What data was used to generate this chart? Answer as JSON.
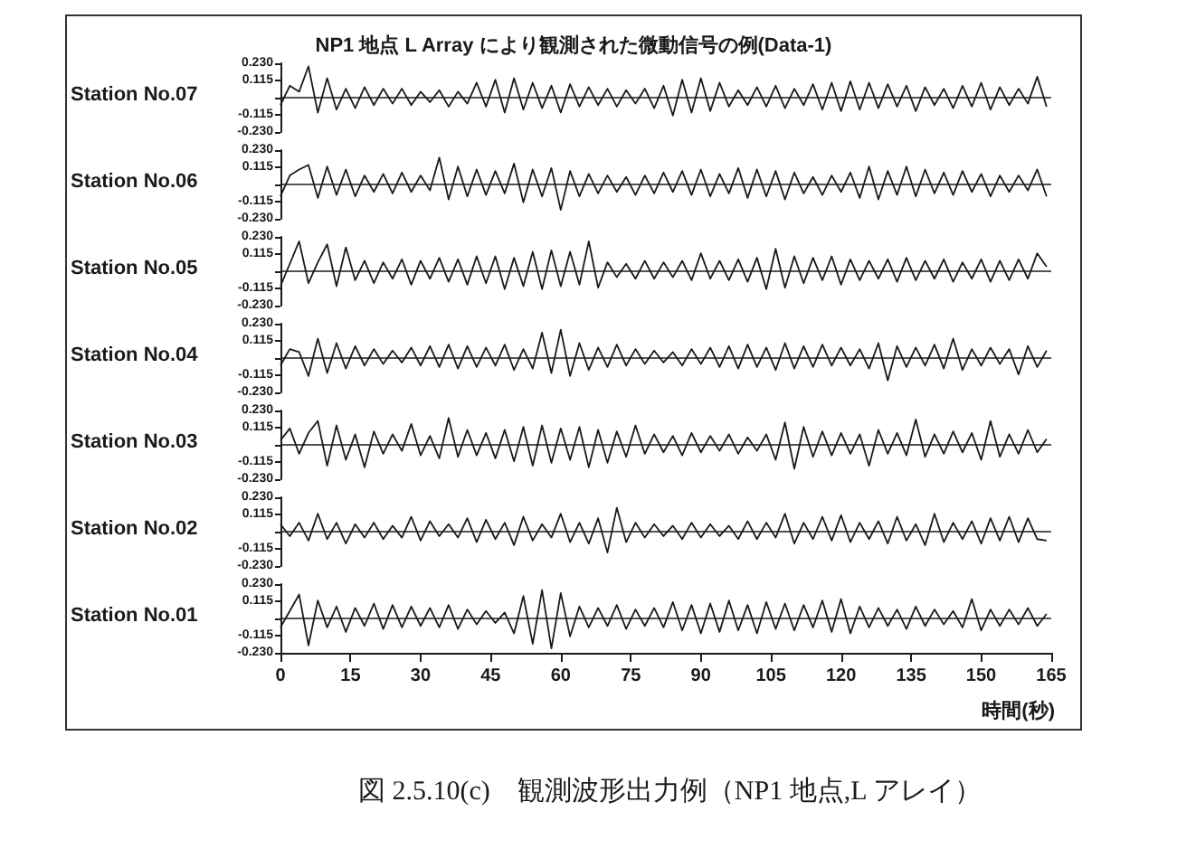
{
  "chart_data": [
    {
      "type": "line",
      "title": "NP1 地点 L Array により観測された微動信号の例(Data-1)",
      "ylabel": "Station No.07",
      "color": "#1a1a1a",
      "tick_labels": "y",
      "marker": "none",
      "grid": false,
      "xlim": [
        0,
        165
      ],
      "xticks": [
        0,
        15,
        30,
        45,
        60,
        75,
        90,
        105,
        120,
        135,
        150,
        165
      ],
      "ylim": [
        -0.23,
        0.23
      ],
      "yticks": [
        {
          "value": 0.23,
          "label": "0.230"
        },
        {
          "value": 0.115,
          "label": "0.115"
        },
        {
          "value": 0,
          "label": null
        },
        {
          "value": -0.115,
          "label": "-0.115"
        },
        {
          "value": -0.23,
          "label": "-0.230"
        }
      ],
      "ref_lines": [
        {
          "axis": "y",
          "value": 0
        }
      ],
      "x": [
        0,
        2,
        4,
        6,
        8,
        10,
        12,
        14,
        16,
        18,
        20,
        22,
        24,
        26,
        28,
        30,
        32,
        34,
        36,
        38,
        40,
        42,
        44,
        46,
        48,
        50,
        52,
        54,
        56,
        58,
        60,
        62,
        64,
        66,
        68,
        70,
        72,
        74,
        76,
        78,
        80,
        82,
        84,
        86,
        88,
        90,
        92,
        94,
        96,
        98,
        100,
        102,
        104,
        106,
        108,
        110,
        112,
        114,
        116,
        118,
        120,
        122,
        124,
        126,
        128,
        130,
        132,
        134,
        136,
        138,
        140,
        142,
        144,
        146,
        148,
        150,
        152,
        154,
        156,
        158,
        160,
        162,
        164
      ],
      "values": [
        -0.05,
        0.08,
        0.04,
        0.21,
        -0.1,
        0.13,
        -0.08,
        0.06,
        -0.07,
        0.07,
        -0.05,
        0.06,
        -0.04,
        0.06,
        -0.05,
        0.04,
        -0.03,
        0.05,
        -0.06,
        0.04,
        -0.04,
        0.1,
        -0.06,
        0.12,
        -0.1,
        0.13,
        -0.08,
        0.1,
        -0.07,
        0.08,
        -0.1,
        0.09,
        -0.06,
        0.07,
        -0.05,
        0.06,
        -0.06,
        0.05,
        -0.04,
        0.06,
        -0.07,
        0.08,
        -0.12,
        0.12,
        -0.1,
        0.13,
        -0.09,
        0.1,
        -0.06,
        0.05,
        -0.05,
        0.07,
        -0.06,
        0.08,
        -0.07,
        0.06,
        -0.05,
        0.09,
        -0.08,
        0.1,
        -0.09,
        0.11,
        -0.08,
        0.1,
        -0.07,
        0.09,
        -0.06,
        0.08,
        -0.09,
        0.07,
        -0.05,
        0.06,
        -0.07,
        0.08,
        -0.06,
        0.1,
        -0.08,
        0.07,
        -0.05,
        0.06,
        -0.04,
        0.14,
        -0.06
      ]
    },
    {
      "type": "line",
      "ylabel": "Station No.06",
      "color": "#1a1a1a",
      "tick_labels": "y",
      "marker": "none",
      "grid": false,
      "xlim": [
        0,
        165
      ],
      "xticks": [
        0,
        15,
        30,
        45,
        60,
        75,
        90,
        105,
        120,
        135,
        150,
        165
      ],
      "ylim": [
        -0.23,
        0.23
      ],
      "yticks": [
        {
          "value": 0.23,
          "label": "0.230"
        },
        {
          "value": 0.115,
          "label": "0.115"
        },
        {
          "value": 0,
          "label": null
        },
        {
          "value": -0.115,
          "label": "-0.115"
        },
        {
          "value": -0.23,
          "label": "-0.230"
        }
      ],
      "ref_lines": [
        {
          "axis": "y",
          "value": 0
        }
      ],
      "x": [
        0,
        2,
        4,
        6,
        8,
        10,
        12,
        14,
        16,
        18,
        20,
        22,
        24,
        26,
        28,
        30,
        32,
        34,
        36,
        38,
        40,
        42,
        44,
        46,
        48,
        50,
        52,
        54,
        56,
        58,
        60,
        62,
        64,
        66,
        68,
        70,
        72,
        74,
        76,
        78,
        80,
        82,
        84,
        86,
        88,
        90,
        92,
        94,
        96,
        98,
        100,
        102,
        104,
        106,
        108,
        110,
        112,
        114,
        116,
        118,
        120,
        122,
        124,
        126,
        128,
        130,
        132,
        134,
        136,
        138,
        140,
        142,
        144,
        146,
        148,
        150,
        152,
        154,
        156,
        158,
        160,
        162,
        164
      ],
      "values": [
        -0.08,
        0.06,
        0.1,
        0.13,
        -0.09,
        0.12,
        -0.07,
        0.1,
        -0.08,
        0.06,
        -0.05,
        0.07,
        -0.06,
        0.08,
        -0.05,
        0.06,
        -0.04,
        0.18,
        -0.1,
        0.12,
        -0.08,
        0.1,
        -0.07,
        0.09,
        -0.06,
        0.14,
        -0.12,
        0.1,
        -0.08,
        0.11,
        -0.17,
        0.09,
        -0.08,
        0.07,
        -0.06,
        0.06,
        -0.05,
        0.05,
        -0.07,
        0.06,
        -0.06,
        0.08,
        -0.05,
        0.09,
        -0.07,
        0.1,
        -0.08,
        0.07,
        -0.06,
        0.11,
        -0.09,
        0.1,
        -0.08,
        0.09,
        -0.1,
        0.08,
        -0.06,
        0.05,
        -0.07,
        0.06,
        -0.05,
        0.08,
        -0.09,
        0.12,
        -0.1,
        0.09,
        -0.07,
        0.12,
        -0.08,
        0.1,
        -0.06,
        0.08,
        -0.07,
        0.09,
        -0.05,
        0.07,
        -0.08,
        0.06,
        -0.05,
        0.06,
        -0.04,
        0.1,
        -0.08
      ]
    },
    {
      "type": "line",
      "ylabel": "Station No.05",
      "color": "#1a1a1a",
      "tick_labels": "y",
      "marker": "none",
      "grid": false,
      "xlim": [
        0,
        165
      ],
      "xticks": [
        0,
        15,
        30,
        45,
        60,
        75,
        90,
        105,
        120,
        135,
        150,
        165
      ],
      "ylim": [
        -0.23,
        0.23
      ],
      "yticks": [
        {
          "value": 0.23,
          "label": "0.230"
        },
        {
          "value": 0.115,
          "label": "0.115"
        },
        {
          "value": 0,
          "label": null
        },
        {
          "value": -0.115,
          "label": "-0.115"
        },
        {
          "value": -0.23,
          "label": "-0.230"
        }
      ],
      "ref_lines": [
        {
          "axis": "y",
          "value": 0
        }
      ],
      "x": [
        0,
        2,
        4,
        6,
        8,
        10,
        12,
        14,
        16,
        18,
        20,
        22,
        24,
        26,
        28,
        30,
        32,
        34,
        36,
        38,
        40,
        42,
        44,
        46,
        48,
        50,
        52,
        54,
        56,
        58,
        60,
        62,
        64,
        66,
        68,
        70,
        72,
        74,
        76,
        78,
        80,
        82,
        84,
        86,
        88,
        90,
        92,
        94,
        96,
        98,
        100,
        102,
        104,
        106,
        108,
        110,
        112,
        114,
        116,
        118,
        120,
        122,
        124,
        126,
        128,
        130,
        132,
        134,
        136,
        138,
        140,
        142,
        144,
        146,
        148,
        150,
        152,
        154,
        156,
        158,
        160,
        162,
        164
      ],
      "values": [
        -0.1,
        0.05,
        0.2,
        -0.08,
        0.06,
        0.18,
        -0.1,
        0.16,
        -0.06,
        0.07,
        -0.08,
        0.06,
        -0.05,
        0.08,
        -0.09,
        0.07,
        -0.05,
        0.09,
        -0.07,
        0.08,
        -0.09,
        0.1,
        -0.08,
        0.1,
        -0.12,
        0.09,
        -0.1,
        0.13,
        -0.12,
        0.14,
        -0.1,
        0.13,
        -0.09,
        0.2,
        -0.11,
        0.06,
        -0.04,
        0.05,
        -0.05,
        0.07,
        -0.05,
        0.06,
        -0.04,
        0.07,
        -0.06,
        0.12,
        -0.05,
        0.07,
        -0.06,
        0.08,
        -0.07,
        0.09,
        -0.12,
        0.15,
        -0.11,
        0.1,
        -0.08,
        0.09,
        -0.06,
        0.1,
        -0.09,
        0.08,
        -0.06,
        0.07,
        -0.05,
        0.08,
        -0.07,
        0.09,
        -0.06,
        0.07,
        -0.05,
        0.08,
        -0.07,
        0.06,
        -0.05,
        0.08,
        -0.07,
        0.07,
        -0.06,
        0.08,
        -0.05,
        0.12,
        0.03
      ]
    },
    {
      "type": "line",
      "ylabel": "Station No.04",
      "color": "#1a1a1a",
      "tick_labels": "y",
      "marker": "none",
      "grid": false,
      "xlim": [
        0,
        165
      ],
      "xticks": [
        0,
        15,
        30,
        45,
        60,
        75,
        90,
        105,
        120,
        135,
        150,
        165
      ],
      "ylim": [
        -0.23,
        0.23
      ],
      "yticks": [
        {
          "value": 0.23,
          "label": "0.230"
        },
        {
          "value": 0.115,
          "label": "0.115"
        },
        {
          "value": 0,
          "label": null
        },
        {
          "value": -0.115,
          "label": "-0.115"
        },
        {
          "value": -0.23,
          "label": "-0.230"
        }
      ],
      "ref_lines": [
        {
          "axis": "y",
          "value": 0
        }
      ],
      "x": [
        0,
        2,
        4,
        6,
        8,
        10,
        12,
        14,
        16,
        18,
        20,
        22,
        24,
        26,
        28,
        30,
        32,
        34,
        36,
        38,
        40,
        42,
        44,
        46,
        48,
        50,
        52,
        54,
        56,
        58,
        60,
        62,
        64,
        66,
        68,
        70,
        72,
        74,
        76,
        78,
        80,
        82,
        84,
        86,
        88,
        90,
        92,
        94,
        96,
        98,
        100,
        102,
        104,
        106,
        108,
        110,
        112,
        114,
        116,
        118,
        120,
        122,
        124,
        126,
        128,
        130,
        132,
        134,
        136,
        138,
        140,
        142,
        144,
        146,
        148,
        150,
        152,
        154,
        156,
        158,
        160,
        162,
        164
      ],
      "values": [
        -0.05,
        0.06,
        0.04,
        -0.12,
        0.13,
        -0.1,
        0.1,
        -0.07,
        0.08,
        -0.05,
        0.06,
        -0.04,
        0.05,
        -0.03,
        0.07,
        -0.05,
        0.08,
        -0.06,
        0.09,
        -0.07,
        0.08,
        -0.06,
        0.07,
        -0.05,
        0.09,
        -0.08,
        0.06,
        -0.07,
        0.17,
        -0.1,
        0.19,
        -0.12,
        0.1,
        -0.08,
        0.07,
        -0.06,
        0.09,
        -0.05,
        0.06,
        -0.04,
        0.05,
        -0.03,
        0.04,
        -0.05,
        0.06,
        -0.04,
        0.07,
        -0.06,
        0.08,
        -0.07,
        0.09,
        -0.06,
        0.07,
        -0.08,
        0.1,
        -0.07,
        0.08,
        -0.06,
        0.09,
        -0.05,
        0.07,
        -0.05,
        0.06,
        -0.07,
        0.1,
        -0.15,
        0.08,
        -0.06,
        0.07,
        -0.05,
        0.09,
        -0.07,
        0.13,
        -0.08,
        0.06,
        -0.05,
        0.07,
        -0.04,
        0.06,
        -0.11,
        0.08,
        -0.06,
        0.05
      ]
    },
    {
      "type": "line",
      "ylabel": "Station No.03",
      "color": "#1a1a1a",
      "tick_labels": "y",
      "marker": "none",
      "grid": false,
      "xlim": [
        0,
        165
      ],
      "xticks": [
        0,
        15,
        30,
        45,
        60,
        75,
        90,
        105,
        120,
        135,
        150,
        165
      ],
      "ylim": [
        -0.23,
        0.23
      ],
      "yticks": [
        {
          "value": 0.23,
          "label": "0.230"
        },
        {
          "value": 0.115,
          "label": "0.115"
        },
        {
          "value": 0,
          "label": null
        },
        {
          "value": -0.115,
          "label": "-0.115"
        },
        {
          "value": -0.23,
          "label": "-0.230"
        }
      ],
      "ref_lines": [
        {
          "axis": "y",
          "value": 0
        }
      ],
      "x": [
        0,
        2,
        4,
        6,
        8,
        10,
        12,
        14,
        16,
        18,
        20,
        22,
        24,
        26,
        28,
        30,
        32,
        34,
        36,
        38,
        40,
        42,
        44,
        46,
        48,
        50,
        52,
        54,
        56,
        58,
        60,
        62,
        64,
        66,
        68,
        70,
        72,
        74,
        76,
        78,
        80,
        82,
        84,
        86,
        88,
        90,
        92,
        94,
        96,
        98,
        100,
        102,
        104,
        106,
        108,
        110,
        112,
        114,
        116,
        118,
        120,
        122,
        124,
        126,
        128,
        130,
        132,
        134,
        136,
        138,
        140,
        142,
        144,
        146,
        148,
        150,
        152,
        154,
        156,
        158,
        160,
        162,
        164
      ],
      "values": [
        0.03,
        0.11,
        -0.06,
        0.08,
        0.16,
        -0.14,
        0.13,
        -0.1,
        0.07,
        -0.15,
        0.09,
        -0.06,
        0.07,
        -0.04,
        0.14,
        -0.07,
        0.06,
        -0.09,
        0.18,
        -0.08,
        0.1,
        -0.07,
        0.08,
        -0.09,
        0.1,
        -0.11,
        0.12,
        -0.14,
        0.13,
        -0.12,
        0.11,
        -0.1,
        0.12,
        -0.15,
        0.1,
        -0.12,
        0.09,
        -0.08,
        0.13,
        -0.06,
        0.07,
        -0.05,
        0.06,
        -0.07,
        0.08,
        -0.05,
        0.06,
        -0.04,
        0.07,
        -0.06,
        0.05,
        -0.04,
        0.07,
        -0.1,
        0.15,
        -0.16,
        0.12,
        -0.08,
        0.09,
        -0.07,
        0.08,
        -0.06,
        0.07,
        -0.14,
        0.1,
        -0.06,
        0.08,
        -0.07,
        0.17,
        -0.08,
        0.07,
        -0.06,
        0.09,
        -0.05,
        0.08,
        -0.1,
        0.16,
        -0.08,
        0.07,
        -0.06,
        0.1,
        -0.05,
        0.04
      ]
    },
    {
      "type": "line",
      "ylabel": "Station No.02",
      "color": "#1a1a1a",
      "tick_labels": "y",
      "marker": "none",
      "grid": false,
      "xlim": [
        0,
        165
      ],
      "xticks": [
        0,
        15,
        30,
        45,
        60,
        75,
        90,
        105,
        120,
        135,
        150,
        165
      ],
      "ylim": [
        -0.23,
        0.23
      ],
      "yticks": [
        {
          "value": 0.23,
          "label": "0.230"
        },
        {
          "value": 0.115,
          "label": "0.115"
        },
        {
          "value": 0,
          "label": null
        },
        {
          "value": -0.115,
          "label": "-0.115"
        },
        {
          "value": -0.23,
          "label": "-0.230"
        }
      ],
      "ref_lines": [
        {
          "axis": "y",
          "value": 0
        }
      ],
      "x": [
        0,
        2,
        4,
        6,
        8,
        10,
        12,
        14,
        16,
        18,
        20,
        22,
        24,
        26,
        28,
        30,
        32,
        34,
        36,
        38,
        40,
        42,
        44,
        46,
        48,
        50,
        52,
        54,
        56,
        58,
        60,
        62,
        64,
        66,
        68,
        70,
        72,
        74,
        76,
        78,
        80,
        82,
        84,
        86,
        88,
        90,
        92,
        94,
        96,
        98,
        100,
        102,
        104,
        106,
        108,
        110,
        112,
        114,
        116,
        118,
        120,
        122,
        124,
        126,
        128,
        130,
        132,
        134,
        136,
        138,
        140,
        142,
        144,
        146,
        148,
        150,
        152,
        154,
        156,
        158,
        160,
        162,
        164
      ],
      "values": [
        0.05,
        -0.03,
        0.06,
        -0.06,
        0.12,
        -0.05,
        0.06,
        -0.08,
        0.05,
        -0.04,
        0.06,
        -0.05,
        0.04,
        -0.04,
        0.1,
        -0.06,
        0.07,
        -0.03,
        0.05,
        -0.04,
        0.09,
        -0.07,
        0.08,
        -0.05,
        0.06,
        -0.09,
        0.1,
        -0.06,
        0.05,
        -0.04,
        0.12,
        -0.07,
        0.06,
        -0.08,
        0.09,
        -0.14,
        0.16,
        -0.07,
        0.06,
        -0.04,
        0.05,
        -0.03,
        0.04,
        -0.05,
        0.06,
        -0.04,
        0.05,
        -0.03,
        0.04,
        -0.05,
        0.07,
        -0.05,
        0.06,
        -0.04,
        0.12,
        -0.08,
        0.06,
        -0.05,
        0.1,
        -0.06,
        0.11,
        -0.07,
        0.06,
        -0.05,
        0.07,
        -0.08,
        0.1,
        -0.06,
        0.05,
        -0.09,
        0.12,
        -0.07,
        0.06,
        -0.05,
        0.07,
        -0.08,
        0.09,
        -0.06,
        0.1,
        -0.07,
        0.09,
        -0.05,
        -0.06
      ]
    },
    {
      "type": "line",
      "ylabel": "Station No.01",
      "xlabel": "時間(秒)",
      "color": "#1a1a1a",
      "marker": "none",
      "grid": false,
      "xlim": [
        0,
        165
      ],
      "xticks": [
        0,
        15,
        30,
        45,
        60,
        75,
        90,
        105,
        120,
        135,
        150,
        165
      ],
      "ylim": [
        -0.23,
        0.23
      ],
      "yticks": [
        {
          "value": 0.23,
          "label": "0.230"
        },
        {
          "value": 0.115,
          "label": "0.115"
        },
        {
          "value": 0,
          "label": null
        },
        {
          "value": -0.115,
          "label": "-0.115"
        },
        {
          "value": -0.23,
          "label": "-0.230"
        }
      ],
      "ref_lines": [
        {
          "axis": "y",
          "value": 0
        }
      ],
      "annotations": [
        "図 2.5.10(c)　観測波形出力例（NP1 地点,L アレイ）"
      ],
      "x": [
        0,
        2,
        4,
        6,
        8,
        10,
        12,
        14,
        16,
        18,
        20,
        22,
        24,
        26,
        28,
        30,
        32,
        34,
        36,
        38,
        40,
        42,
        44,
        46,
        48,
        50,
        52,
        54,
        56,
        58,
        60,
        62,
        64,
        66,
        68,
        70,
        72,
        74,
        76,
        78,
        80,
        82,
        84,
        86,
        88,
        90,
        92,
        94,
        96,
        98,
        100,
        102,
        104,
        106,
        108,
        110,
        112,
        114,
        116,
        118,
        120,
        122,
        124,
        126,
        128,
        130,
        132,
        134,
        136,
        138,
        140,
        142,
        144,
        146,
        148,
        150,
        152,
        154,
        156,
        158,
        160,
        162,
        164
      ],
      "values": [
        -0.06,
        0.05,
        0.16,
        -0.18,
        0.12,
        -0.06,
        0.08,
        -0.09,
        0.07,
        -0.05,
        0.1,
        -0.07,
        0.09,
        -0.06,
        0.08,
        -0.05,
        0.07,
        -0.06,
        0.09,
        -0.07,
        0.06,
        -0.04,
        0.05,
        -0.03,
        0.04,
        -0.1,
        0.15,
        -0.17,
        0.19,
        -0.2,
        0.17,
        -0.12,
        0.08,
        -0.06,
        0.07,
        -0.05,
        0.09,
        -0.07,
        0.06,
        -0.05,
        0.07,
        -0.06,
        0.11,
        -0.08,
        0.09,
        -0.1,
        0.1,
        -0.09,
        0.12,
        -0.08,
        0.09,
        -0.1,
        0.11,
        -0.07,
        0.1,
        -0.08,
        0.09,
        -0.06,
        0.12,
        -0.09,
        0.13,
        -0.1,
        0.08,
        -0.06,
        0.07,
        -0.05,
        0.06,
        -0.07,
        0.08,
        -0.05,
        0.06,
        -0.04,
        0.05,
        -0.06,
        0.13,
        -0.08,
        0.06,
        -0.05,
        0.06,
        -0.04,
        0.07,
        -0.05,
        0.03
      ]
    }
  ]
}
